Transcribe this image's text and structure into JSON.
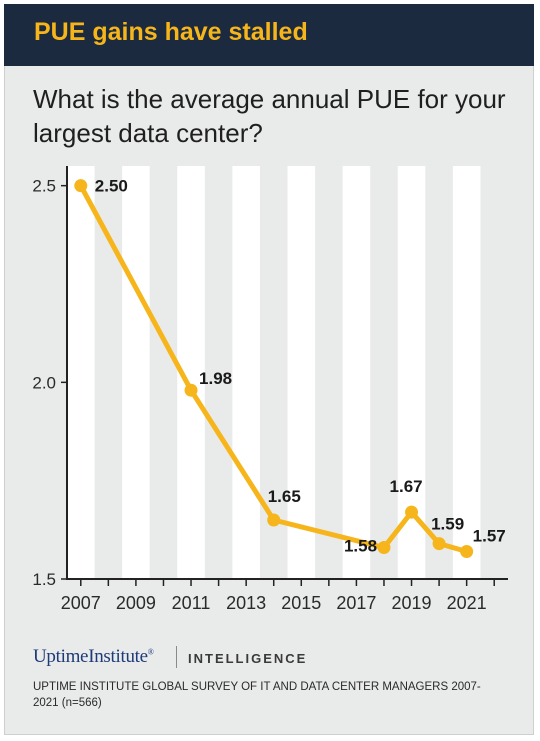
{
  "header": {
    "title": "PUE gains have stalled"
  },
  "question": "What is the average annual PUE for your largest data center?",
  "footer": {
    "brand": "UptimeInstitute",
    "brand_mark": "®",
    "brand_sub": "INTELLIGENCE",
    "source": "UPTIME INSTITUTE GLOBAL SURVEY OF IT AND DATA CENTER MANAGERS 2007-2021 (n=566)"
  },
  "colors": {
    "header_bg": "#1b2a3f",
    "accent": "#f6b51a",
    "background": "#e9eaea",
    "stripe": "#ffffff",
    "text": "#1f1f1f"
  },
  "chart_data": {
    "type": "line",
    "title": "",
    "xlabel": "",
    "ylabel": "",
    "x": [
      2007,
      2011,
      2014,
      2018,
      2019,
      2020,
      2021
    ],
    "y": [
      2.5,
      1.98,
      1.65,
      1.58,
      1.67,
      1.59,
      1.57
    ],
    "data_labels": [
      "2.50",
      "1.98",
      "1.65",
      "1.58",
      "1.67",
      "1.59",
      "1.57"
    ],
    "xlim": [
      2006.5,
      2022.5
    ],
    "ylim": [
      1.5,
      2.55
    ],
    "xticks": [
      2007,
      2009,
      2011,
      2013,
      2015,
      2017,
      2019,
      2021
    ],
    "yticks": [
      {
        "value": 1.5,
        "label": "1.5"
      },
      {
        "value": 2.0,
        "label": "2.0"
      },
      {
        "value": 2.5,
        "label": "2.5"
      }
    ],
    "grid": "alternating vertical stripes per year",
    "legend": "none"
  }
}
